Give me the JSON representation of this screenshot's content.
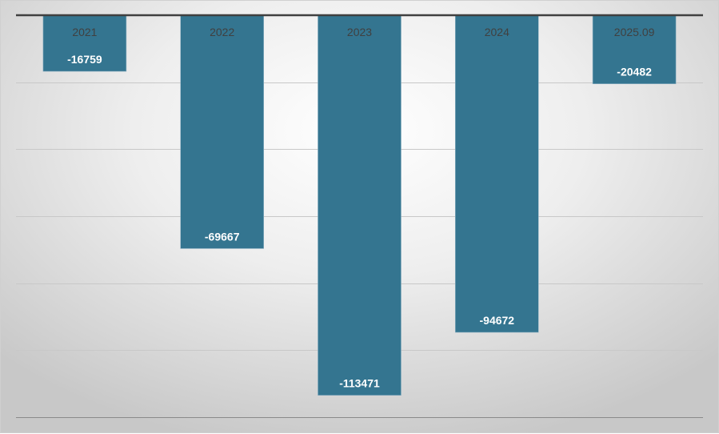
{
  "chart_data": {
    "type": "bar",
    "title": "",
    "xlabel": "",
    "ylabel": "",
    "categories": [
      "2021",
      "2022",
      "2023",
      "2024",
      "2025.09"
    ],
    "values": [
      -16759,
      -69667,
      -113471,
      -94672,
      -20482
    ],
    "ylim": [
      -120000,
      0
    ],
    "grid_step": 20000,
    "grid": true,
    "category_axis_position": "top",
    "value_axis_labels": false,
    "data_labels": true,
    "legend": "none",
    "colors": {
      "bar": "#347590",
      "label": "#ffffff",
      "category_text": "#404040",
      "axis": "#404040",
      "grid": "#c8c8c8"
    }
  }
}
